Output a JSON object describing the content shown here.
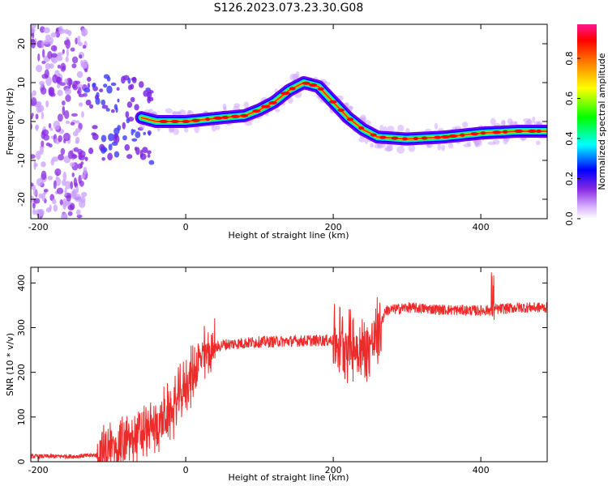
{
  "title": "S126.2023.073.23.30.G08",
  "chart_data": [
    {
      "type": "heatmap",
      "xlabel": "Height of straight line (km)",
      "ylabel": "Frequency (Hz)",
      "xlim": [
        -210,
        490
      ],
      "ylim": [
        -25,
        25
      ],
      "xticks": [
        -200,
        0,
        200,
        400
      ],
      "yticks": [
        -20,
        -10,
        0,
        10,
        20
      ],
      "grid": false,
      "colorbar": {
        "label": "Normalized spectral amplitude",
        "range": [
          0,
          0.97
        ],
        "ticks": [
          0.0,
          0.2,
          0.4,
          0.6,
          0.8
        ],
        "colormap": [
          "#ffffff",
          "#c080ff",
          "#6600ff",
          "#0000ff",
          "#00ffff",
          "#00ff00",
          "#ffff00",
          "#ff8000",
          "#ff0000",
          "#ff00a0"
        ]
      },
      "ridge": {
        "x": [
          -60,
          -40,
          0,
          50,
          80,
          100,
          120,
          140,
          160,
          180,
          200,
          220,
          240,
          260,
          300,
          350,
          400,
          450,
          490
        ],
        "y": [
          1,
          0,
          0,
          1,
          1.5,
          3,
          5,
          8,
          10,
          9,
          5,
          1,
          -2,
          -4,
          -4.5,
          -4,
          -3,
          -2.5,
          -2.5
        ]
      }
    },
    {
      "type": "line",
      "xlabel": "Height of straight line (km)",
      "ylabel": "SNR (10 * v/v)",
      "xlim": [
        -210,
        490
      ],
      "ylim": [
        0,
        435
      ],
      "xticks": [
        -200,
        0,
        200,
        400
      ],
      "yticks": [
        0,
        100,
        200,
        300,
        400
      ],
      "color": "#ee2a2a",
      "series": [
        {
          "x": [
            -210,
            -150,
            -120,
            -100,
            -80,
            -60,
            -40,
            -20,
            0,
            10,
            20,
            30,
            50,
            100,
            150,
            200,
            220,
            240,
            260,
            270,
            300,
            350,
            400,
            450,
            490
          ],
          "y": [
            12,
            12,
            15,
            30,
            45,
            60,
            80,
            110,
            170,
            200,
            230,
            245,
            262,
            268,
            270,
            272,
            265,
            245,
            280,
            338,
            345,
            340,
            338,
            345,
            345
          ]
        }
      ]
    }
  ]
}
